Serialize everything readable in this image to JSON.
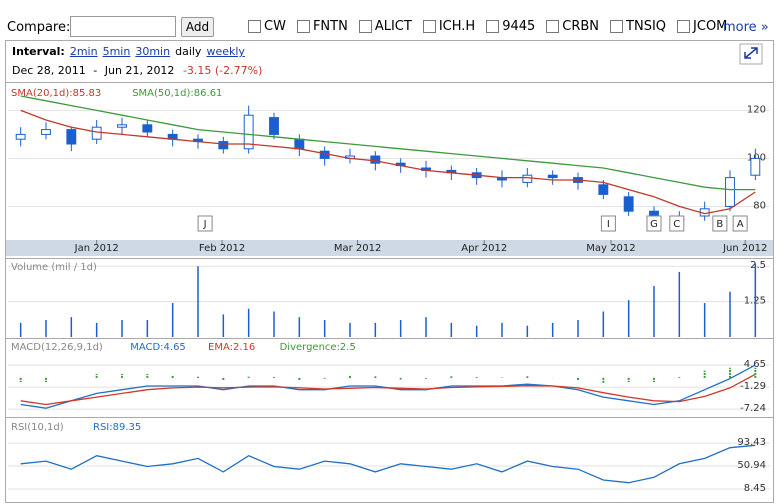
{
  "toolbar": {
    "compare_label": "Compare:",
    "add_button": "Add",
    "checkboxes": [
      "CW",
      "FNTN",
      "ALICT",
      "ICH.H",
      "9445",
      "CRBN",
      "TNSIQ",
      "JCOM"
    ],
    "more": "more »"
  },
  "header": {
    "interval_label": "Interval:",
    "intervals": [
      "2min",
      "5min",
      "30min",
      "daily",
      "weekly"
    ],
    "selected": 3,
    "date_start": "Dec 28, 2011",
    "date_separator": "-",
    "date_end": "Jun 21, 2012",
    "change": "-3.15 (-2.77%)"
  },
  "chart_data": [
    {
      "type": "candlestick",
      "open": [
        108,
        110,
        112,
        108,
        113,
        114,
        110,
        108,
        107,
        104,
        117,
        108,
        103,
        100,
        101,
        98,
        96,
        95,
        94,
        92,
        90,
        93,
        92,
        89,
        84,
        78,
        74,
        76,
        80,
        93
      ],
      "high": [
        113,
        115,
        113,
        116,
        117,
        116,
        112,
        110,
        109,
        122,
        119,
        110,
        105,
        104,
        103,
        100,
        99,
        97,
        96,
        95,
        96,
        95,
        94,
        91,
        86,
        80,
        78,
        82,
        95,
        104
      ],
      "low": [
        105,
        108,
        103,
        106,
        110,
        109,
        105,
        104,
        102,
        102,
        108,
        101,
        97,
        98,
        95,
        94,
        92,
        91,
        89,
        88,
        88,
        89,
        87,
        83,
        76,
        71,
        72,
        74,
        78,
        91
      ],
      "close": [
        110,
        112,
        106,
        113,
        114,
        111,
        108,
        107,
        104,
        118,
        110,
        104,
        100,
        101,
        98,
        97,
        95,
        94,
        92,
        91,
        93,
        92,
        90,
        85,
        78,
        74,
        75,
        79,
        92,
        100
      ],
      "color": "#1a5fcf",
      "series": [
        {
          "name": "SMA(20,1d):85.83",
          "color": "#c0392b",
          "values": [
            120,
            116,
            113,
            111,
            110,
            109,
            108,
            107,
            106,
            106,
            105,
            104,
            102,
            100,
            99,
            97,
            95,
            94,
            93,
            92,
            92,
            91,
            91,
            90,
            87,
            84,
            80,
            77,
            79,
            86
          ]
        },
        {
          "name": "SMA(50,1d):86.61",
          "color": "#3c9a3c",
          "values": [
            126,
            124,
            122,
            120,
            118,
            116,
            114,
            112,
            111,
            110,
            109,
            108,
            107,
            106,
            105,
            104,
            103,
            102,
            101,
            100,
            99,
            98,
            97,
            96,
            94,
            92,
            90,
            88,
            87,
            87
          ]
        }
      ],
      "ylim": [
        66,
        131
      ],
      "yticks": [
        80,
        100,
        120
      ],
      "grid": true,
      "xlim": [
        -0.5,
        29.5
      ],
      "xticks": [
        {
          "value": 3.0,
          "label": "Jan 2012"
        },
        {
          "value": 7.95,
          "label": "Feb 2012"
        },
        {
          "value": 13.3,
          "label": "Mar 2012"
        },
        {
          "value": 18.3,
          "label": "Apr 2012"
        },
        {
          "value": 23.3,
          "label": "May 2012"
        },
        {
          "value": 28.6,
          "label": "Jun 2012"
        }
      ],
      "events": [
        {
          "label": "J",
          "x": 7.28
        },
        {
          "label": "I",
          "x": 23.2
        },
        {
          "label": "G",
          "x": 25.0
        },
        {
          "label": "C",
          "x": 25.9
        },
        {
          "label": "B",
          "x": 27.6
        },
        {
          "label": "A",
          "x": 28.4
        }
      ]
    },
    {
      "type": "bar",
      "title": "Volume (mil / 1d)",
      "color": "#1a5fcf",
      "values": [
        0.5,
        0.6,
        0.7,
        0.5,
        0.6,
        0.6,
        1.2,
        2.5,
        0.8,
        1.0,
        0.9,
        0.7,
        0.6,
        0.5,
        0.5,
        0.6,
        0.7,
        0.5,
        0.4,
        0.5,
        0.4,
        0.5,
        0.6,
        0.9,
        1.3,
        1.8,
        2.3,
        1.2,
        1.6,
        2.6
      ],
      "ylim": [
        0,
        2.65
      ],
      "yticks": [
        2.5,
        1.25
      ],
      "grid": true,
      "xlim": [
        -0.5,
        29.5
      ]
    },
    {
      "type": "line",
      "title": "MACD(12,26,9,1d)",
      "series": [
        {
          "name": "MACD:4.65",
          "color": "#1f6fc5",
          "values": [
            -6,
            -7,
            -5,
            -3,
            -2,
            -1,
            -1,
            -1,
            -2,
            -1,
            -1,
            -2,
            -2,
            -1,
            -1,
            -2,
            -2,
            -1,
            -1,
            -1,
            -0.5,
            -1,
            -2,
            -4,
            -5,
            -6,
            -5,
            -2,
            1,
            4.65
          ]
        },
        {
          "name": "EMA:2.16",
          "color": "#d0392b",
          "values": [
            -5,
            -6,
            -5,
            -4,
            -3,
            -2,
            -1.5,
            -1.3,
            -1.5,
            -1.3,
            -1.2,
            -1.5,
            -1.8,
            -1.6,
            -1.4,
            -1.6,
            -1.8,
            -1.4,
            -1.2,
            -1.1,
            -0.9,
            -1,
            -1.5,
            -2.8,
            -4,
            -5,
            -5.2,
            -3.8,
            -1.5,
            2.16
          ]
        },
        {
          "name": "Divergence:2.5",
          "color": "#3c9a3c",
          "axis": "y2",
          "values": [
            -1,
            -1,
            0,
            1,
            1,
            1,
            0.5,
            0.3,
            -0.5,
            0.3,
            0.2,
            -0.5,
            -0.2,
            0.6,
            0.4,
            -0.4,
            -0.2,
            0.4,
            0.2,
            0.1,
            0.4,
            0,
            -0.5,
            -1.2,
            -1,
            -1,
            0.2,
            1.8,
            2.5,
            2.5
          ]
        }
      ],
      "ylim": [
        -9.1,
        8.2
      ],
      "yticks": [
        4.65,
        -1.29,
        -7.24
      ],
      "y2lim": [
        -9.4,
        6.4
      ],
      "grid": true,
      "xlim": [
        -0.5,
        29.5
      ]
    },
    {
      "type": "line",
      "title": "RSI(10,1d)",
      "series": [
        {
          "name": "RSI:89.35",
          "color": "#1f6fc5",
          "values": [
            55,
            60,
            45,
            70,
            60,
            50,
            55,
            65,
            40,
            70,
            50,
            45,
            60,
            55,
            40,
            55,
            50,
            45,
            55,
            40,
            60,
            50,
            45,
            25,
            20,
            30,
            55,
            65,
            85,
            89.35
          ]
        }
      ],
      "ylim": [
        -12,
        114
      ],
      "yticks": [
        93.43,
        50.94,
        8.45
      ],
      "grid": true,
      "xlim": [
        -0.5,
        29.5
      ]
    }
  ]
}
